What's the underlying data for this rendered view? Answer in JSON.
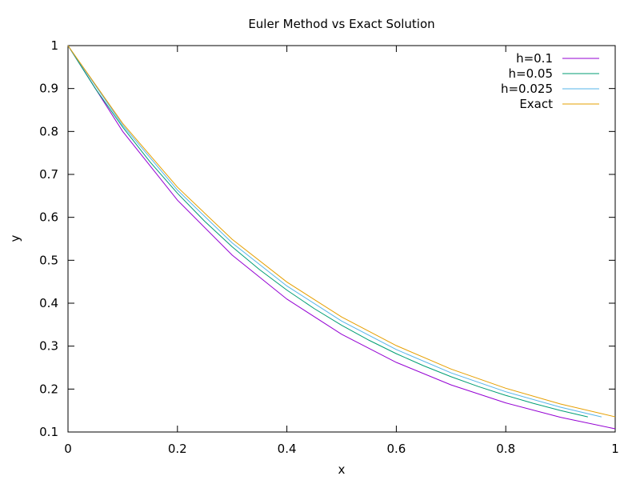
{
  "chart_data": {
    "type": "line",
    "title": "Euler Method vs Exact Solution",
    "xlabel": "x",
    "ylabel": "y",
    "xlim": [
      0,
      1
    ],
    "ylim": [
      0.1,
      1
    ],
    "x_ticks": [
      "0",
      "0.2",
      "0.4",
      "0.6",
      "0.8",
      "1"
    ],
    "x_tick_values": [
      0,
      0.2,
      0.4,
      0.6,
      0.8,
      1
    ],
    "y_ticks": [
      "0.1",
      "0.2",
      "0.3",
      "0.4",
      "0.5",
      "0.6",
      "0.7",
      "0.8",
      "0.9",
      "1"
    ],
    "y_tick_values": [
      0.1,
      0.2,
      0.3,
      0.4,
      0.5,
      0.6,
      0.7,
      0.8,
      0.9,
      1
    ],
    "grid": false,
    "legend_position": "top-right",
    "series": [
      {
        "name": "h=0.1",
        "color": "#9400d3",
        "x": [
          0,
          0.1,
          0.2,
          0.3,
          0.4,
          0.5,
          0.6,
          0.7,
          0.8,
          0.9,
          1.0
        ],
        "y": [
          1,
          0.8,
          0.64,
          0.512,
          0.4096,
          0.3277,
          0.2621,
          0.2097,
          0.1678,
          0.1342,
          0.1074
        ]
      },
      {
        "name": "h=0.05",
        "color": "#009e73",
        "x": [
          0,
          0.05,
          0.1,
          0.15,
          0.2,
          0.25,
          0.3,
          0.35,
          0.4,
          0.45,
          0.5,
          0.55,
          0.6,
          0.65,
          0.7,
          0.75,
          0.8,
          0.85,
          0.9,
          0.95
        ],
        "y": [
          1,
          0.9,
          0.81,
          0.729,
          0.6561,
          0.5905,
          0.5314,
          0.4783,
          0.4305,
          0.3874,
          0.3487,
          0.3138,
          0.2824,
          0.2542,
          0.2288,
          0.2059,
          0.1853,
          0.1668,
          0.1501,
          0.1351
        ]
      },
      {
        "name": "h=0.025",
        "color": "#56b4e9",
        "x": [
          0,
          0.1,
          0.2,
          0.3,
          0.4,
          0.5,
          0.6,
          0.7,
          0.8,
          0.9,
          0.975
        ],
        "y": [
          1,
          0.8145,
          0.6634,
          0.5404,
          0.4401,
          0.3585,
          0.292,
          0.2378,
          0.1937,
          0.1578,
          0.1351
        ]
      },
      {
        "name": "Exact",
        "color": "#e69f00",
        "x": [
          0,
          0.1,
          0.2,
          0.3,
          0.4,
          0.5,
          0.6,
          0.7,
          0.8,
          0.9,
          1.0
        ],
        "y": [
          1,
          0.8187,
          0.6703,
          0.5488,
          0.4493,
          0.3679,
          0.3012,
          0.2466,
          0.2019,
          0.1653,
          0.1353
        ]
      }
    ]
  }
}
